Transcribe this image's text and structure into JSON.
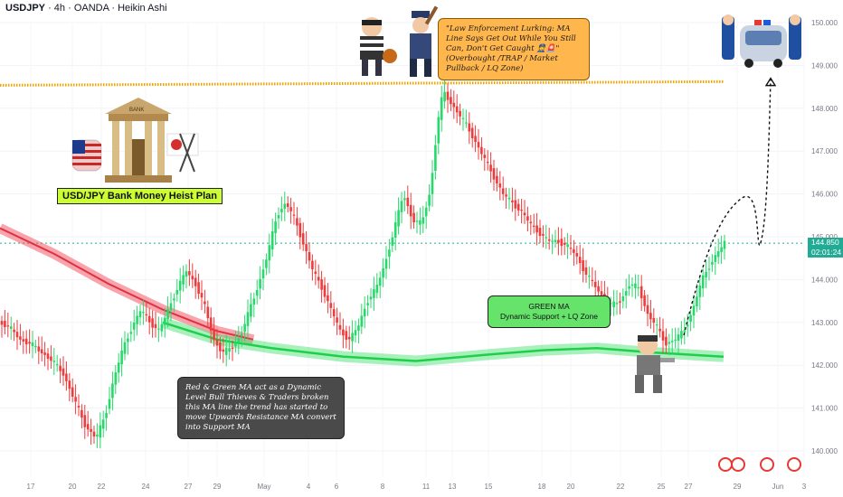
{
  "header": {
    "symbol": "USDJPY",
    "details": " · 4h · OANDA · Heikin Ashi"
  },
  "annotations": {
    "orange_note": "\"Law Enforcement Lurking: MA Line Says Get Out While You Still Can, Don't Get Caught 👮🚨\"(Overbought /TRAP / Market Pullback / LQ Zone)",
    "green_note_title": "GREEN MA",
    "green_note_body": "Dynamic Support + LQ Zone",
    "dark_note": "Red & Green MA act as a Dynamic Level Bull Thieves & Traders broken this MA line the trend has started to move Upwards Resistance MA convert into Support MA",
    "plan_label": "USD/JPY Bank Money Heist Plan",
    "bank_label": "BANK"
  },
  "price_badge": {
    "price": "144.850",
    "countdown": "02:01:24"
  },
  "colors": {
    "bull": "#26d96a",
    "bear": "#ef3b3b",
    "red_ma": "#f05a6a",
    "green_ma": "#3ee06b",
    "trap_line": "#f0a500",
    "badge": "#22ab94"
  },
  "chart_data": {
    "type": "candlestick",
    "style": "Heikin Ashi",
    "symbol": "USDJPY",
    "timeframe": "4h",
    "source": "OANDA",
    "ylim": [
      139.7,
      150.4
    ],
    "y_ticks": [
      "150.000",
      "149.000",
      "148.000",
      "147.000",
      "146.000",
      "145.000",
      "144.000",
      "143.000",
      "142.000",
      "141.000",
      "140.000"
    ],
    "x_ticks": [
      "17",
      "20",
      "22",
      "24",
      "27",
      "29",
      "May",
      "4",
      "6",
      "8",
      "11",
      "13",
      "15",
      "18",
      "20",
      "22",
      "25",
      "27",
      "29",
      "Jun",
      "3"
    ],
    "current_price": 144.85,
    "trap_level": 148.6,
    "path": [
      [
        0,
        143.0
      ],
      [
        10,
        142.9
      ],
      [
        22,
        142.6
      ],
      [
        34,
        142.5
      ],
      [
        46,
        142.3
      ],
      [
        58,
        142.1
      ],
      [
        70,
        141.8
      ],
      [
        82,
        141.2
      ],
      [
        94,
        140.6
      ],
      [
        106,
        140.3
      ],
      [
        116,
        140.8
      ],
      [
        126,
        141.7
      ],
      [
        136,
        142.4
      ],
      [
        146,
        142.9
      ],
      [
        156,
        143.3
      ],
      [
        166,
        143.0
      ],
      [
        176,
        142.8
      ],
      [
        186,
        143.3
      ],
      [
        196,
        143.8
      ],
      [
        206,
        144.2
      ],
      [
        216,
        143.9
      ],
      [
        226,
        143.4
      ],
      [
        236,
        142.6
      ],
      [
        246,
        142.3
      ],
      [
        256,
        142.4
      ],
      [
        266,
        142.7
      ],
      [
        276,
        143.3
      ],
      [
        286,
        143.9
      ],
      [
        296,
        144.6
      ],
      [
        306,
        145.5
      ],
      [
        316,
        145.8
      ],
      [
        326,
        145.4
      ],
      [
        336,
        144.8
      ],
      [
        346,
        144.2
      ],
      [
        356,
        143.8
      ],
      [
        366,
        143.3
      ],
      [
        376,
        142.8
      ],
      [
        386,
        142.6
      ],
      [
        396,
        142.9
      ],
      [
        406,
        143.5
      ],
      [
        416,
        143.8
      ],
      [
        426,
        144.4
      ],
      [
        436,
        145.2
      ],
      [
        446,
        146.0
      ],
      [
        456,
        145.4
      ],
      [
        466,
        145.3
      ],
      [
        476,
        146.1
      ],
      [
        484,
        147.7
      ],
      [
        490,
        148.4
      ],
      [
        496,
        148.2
      ],
      [
        506,
        147.9
      ],
      [
        516,
        147.6
      ],
      [
        526,
        147.2
      ],
      [
        536,
        146.8
      ],
      [
        546,
        146.4
      ],
      [
        556,
        146.0
      ],
      [
        566,
        145.8
      ],
      [
        576,
        145.6
      ],
      [
        586,
        145.3
      ],
      [
        596,
        145.1
      ],
      [
        606,
        144.9
      ],
      [
        616,
        144.9
      ],
      [
        626,
        144.8
      ],
      [
        636,
        144.6
      ],
      [
        646,
        144.2
      ],
      [
        656,
        143.9
      ],
      [
        666,
        143.6
      ],
      [
        676,
        143.4
      ],
      [
        686,
        143.5
      ],
      [
        696,
        143.9
      ],
      [
        706,
        143.8
      ],
      [
        716,
        143.2
      ],
      [
        726,
        142.9
      ],
      [
        736,
        142.5
      ],
      [
        746,
        142.6
      ],
      [
        756,
        142.8
      ],
      [
        766,
        143.3
      ],
      [
        776,
        144.0
      ],
      [
        786,
        144.4
      ],
      [
        796,
        144.7
      ],
      [
        802,
        144.9
      ]
    ],
    "red_ma": [
      [
        0,
        145.2
      ],
      [
        60,
        144.6
      ],
      [
        120,
        143.9
      ],
      [
        180,
        143.3
      ],
      [
        240,
        142.8
      ],
      [
        280,
        142.6
      ]
    ],
    "green_ma": [
      [
        180,
        143.0
      ],
      [
        240,
        142.6
      ],
      [
        300,
        142.4
      ],
      [
        380,
        142.2
      ],
      [
        460,
        142.1
      ],
      [
        540,
        142.25
      ],
      [
        600,
        142.35
      ],
      [
        660,
        142.4
      ],
      [
        720,
        142.3
      ],
      [
        800,
        142.2
      ]
    ],
    "projection": [
      [
        756,
        142.7
      ],
      [
        780,
        144.8
      ],
      [
        800,
        145.6
      ],
      [
        820,
        145.9
      ],
      [
        840,
        144.8
      ],
      [
        850,
        147.6
      ],
      [
        852,
        148.7
      ]
    ]
  }
}
